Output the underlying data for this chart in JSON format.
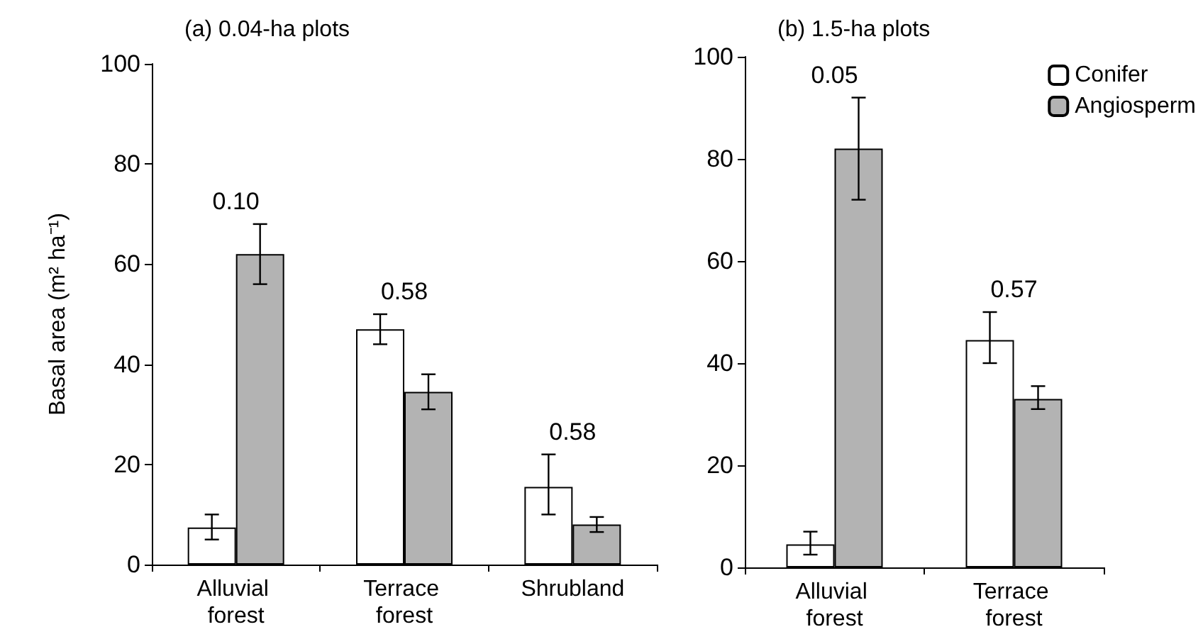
{
  "chart_data": [
    {
      "type": "bar",
      "title": "(a) 0.04-ha plots",
      "ylabel": "Basal area (m² ha⁻¹)",
      "categories": [
        "Alluvial forest",
        "Terrace forest",
        "Shrubland"
      ],
      "series": [
        {
          "color": "#ffffff",
          "values": [
            7.4,
            47,
            15.5
          ],
          "errors": [
            [
              5,
              10
            ],
            [
              44,
              50
            ],
            [
              10,
              22
            ]
          ]
        },
        {
          "color": "#b3b3b3",
          "values": [
            62,
            34.5,
            8
          ],
          "errors": [
            [
              56,
              68
            ],
            [
              31,
              38
            ],
            [
              6.5,
              9.5
            ]
          ]
        }
      ],
      "ylim": [
        0,
        100
      ],
      "yticks": [
        0,
        20,
        40,
        60,
        80,
        100
      ],
      "grid": false,
      "legend": false,
      "annotations": [
        "0.10",
        "0.58",
        "0.58"
      ]
    },
    {
      "type": "bar",
      "title": "(b) 1.5-ha plots",
      "categories": [
        "Alluvial forest",
        "Terrace forest"
      ],
      "series": [
        {
          "name": "Conifer",
          "color": "#ffffff",
          "values": [
            4.5,
            44.5
          ],
          "errors": [
            [
              2.5,
              7
            ],
            [
              40,
              50
            ]
          ]
        },
        {
          "name": "Angiosperm",
          "color": "#b3b3b3",
          "values": [
            82,
            33
          ],
          "errors": [
            [
              72,
              92
            ],
            [
              31,
              35.5
            ]
          ]
        }
      ],
      "ylim": [
        0,
        100
      ],
      "yticks": [
        0,
        20,
        40,
        60,
        80,
        100
      ],
      "grid": false,
      "legend": "top right",
      "annotations": [
        "0.05",
        "0.57"
      ]
    }
  ]
}
